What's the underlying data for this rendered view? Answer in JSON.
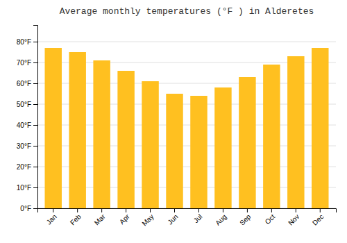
{
  "chart_data": {
    "type": "bar",
    "title": "Average monthly temperatures (°F ) in Alderetes",
    "categories": [
      "Jan",
      "Feb",
      "Mar",
      "Apr",
      "May",
      "Jun",
      "Jul",
      "Aug",
      "Sep",
      "Oct",
      "Nov",
      "Dec"
    ],
    "values": [
      77,
      75,
      71,
      66,
      61,
      55,
      54,
      58,
      63,
      69,
      73,
      77
    ],
    "color": "#FFC020",
    "ylim": [
      0,
      88
    ],
    "yticks": [
      {
        "value": 0,
        "label": "0°F"
      },
      {
        "value": 10,
        "label": "10°F"
      },
      {
        "value": 20,
        "label": "20°F"
      },
      {
        "value": 30,
        "label": "30°F"
      },
      {
        "value": 40,
        "label": "40°F"
      },
      {
        "value": 50,
        "label": "50°F"
      },
      {
        "value": 60,
        "label": "60°F"
      },
      {
        "value": 70,
        "label": "70°F"
      },
      {
        "value": 80,
        "label": "80°F"
      }
    ],
    "grid": true
  }
}
